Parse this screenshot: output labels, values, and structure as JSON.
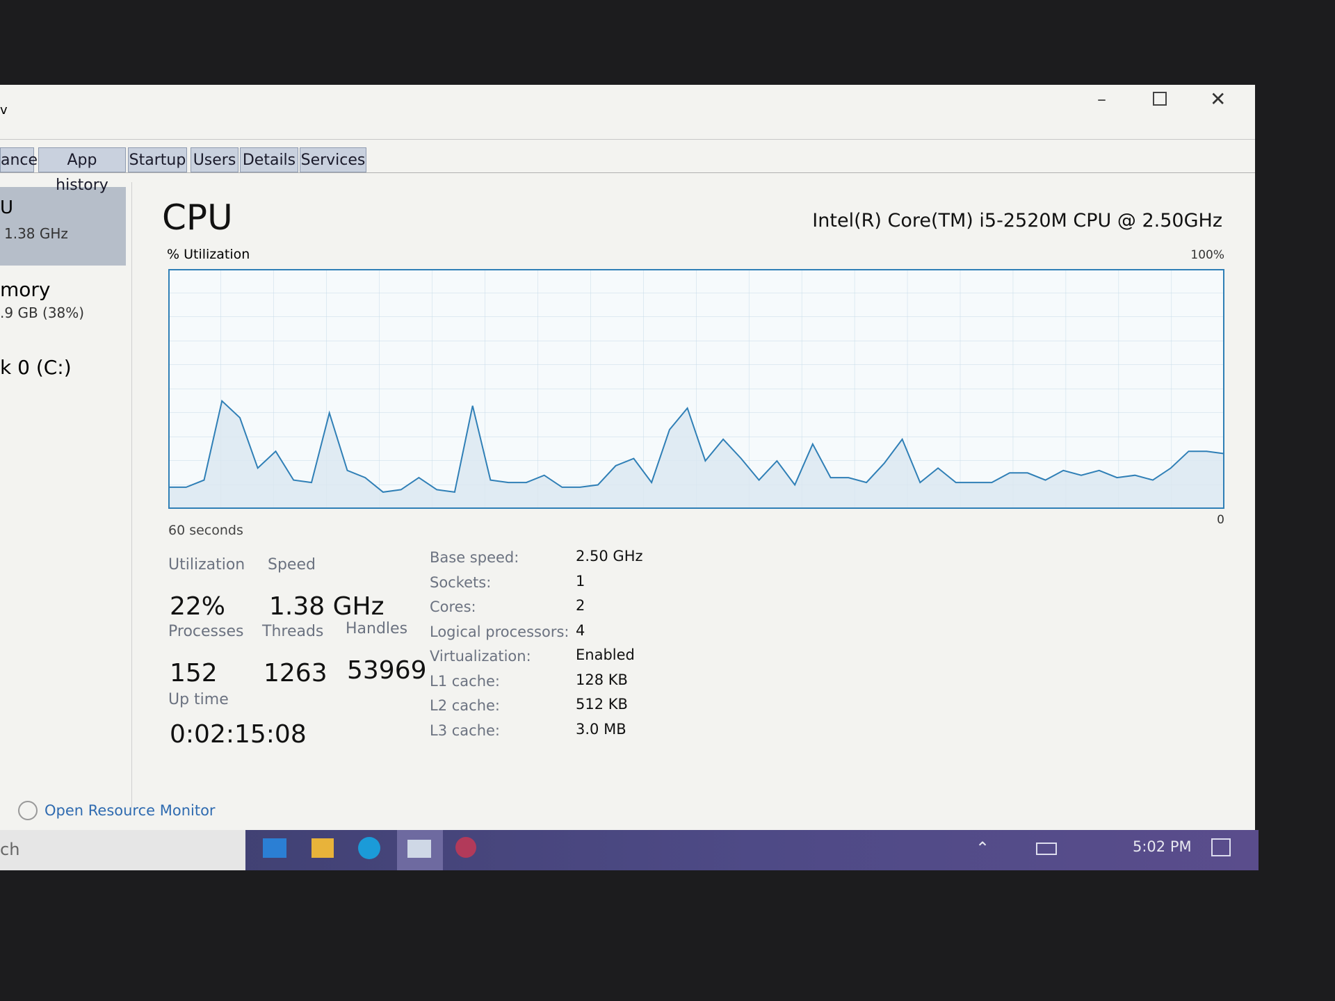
{
  "menu": "v",
  "tabs": [
    "ance",
    "App history",
    "Startup",
    "Users",
    "Details",
    "Services"
  ],
  "sidebar": {
    "cpu_label": "U",
    "cpu_speed": "1.38 GHz",
    "memory_label": "mory",
    "memory_usage": ".9 GB (38%)",
    "disk_label": "k 0 (C:)"
  },
  "cpu": {
    "title": "CPU",
    "processor": "Intel(R) Core(TM) i5-2520M CPU @ 2.50GHz"
  },
  "graph": {
    "label": "% Utilization",
    "time_label": "60 seconds",
    "ylim": [
      0,
      100
    ],
    "yticks": [
      0,
      {
        "value": 100,
        "label": "100%"
      }
    ],
    "values": [
      9,
      9,
      12,
      45,
      38,
      17,
      24,
      12,
      11,
      40,
      16,
      13,
      7,
      8,
      13,
      8,
      7,
      43,
      12,
      11,
      11,
      14,
      9,
      9,
      10,
      18,
      21,
      11,
      33,
      42,
      20,
      29,
      21,
      12,
      20,
      10,
      27,
      13,
      13,
      11,
      19,
      29,
      11,
      17,
      11,
      11,
      11,
      15,
      15,
      12,
      16,
      14,
      16,
      13,
      14,
      12,
      17,
      24,
      24,
      23
    ]
  },
  "stats": [
    {
      "label": "Utilization",
      "value": "22%"
    },
    {
      "label": "Speed",
      "value": "1.38 GHz"
    },
    {
      "label": "Processes",
      "value": "152"
    },
    {
      "label": "Threads",
      "value": "1263"
    },
    {
      "label": "Handles",
      "value": "53969"
    },
    {
      "label": "Up time",
      "value": "0:02:15:08"
    }
  ],
  "specs": [
    [
      "Base speed:",
      "2.50 GHz"
    ],
    [
      "Sockets:",
      "1"
    ],
    [
      "Cores:",
      "2"
    ],
    [
      "Logical processors:",
      "4"
    ],
    [
      "Virtualization:",
      "Enabled"
    ],
    [
      "L1 cache:",
      "128 KB"
    ],
    [
      "L2 cache:",
      "512 KB"
    ],
    [
      "L3 cache:",
      "3.0 MB"
    ]
  ],
  "footer": {
    "link": "Open Resource Monitor"
  },
  "taskbar": {
    "search": "ch",
    "time": "5:02 PM"
  }
}
